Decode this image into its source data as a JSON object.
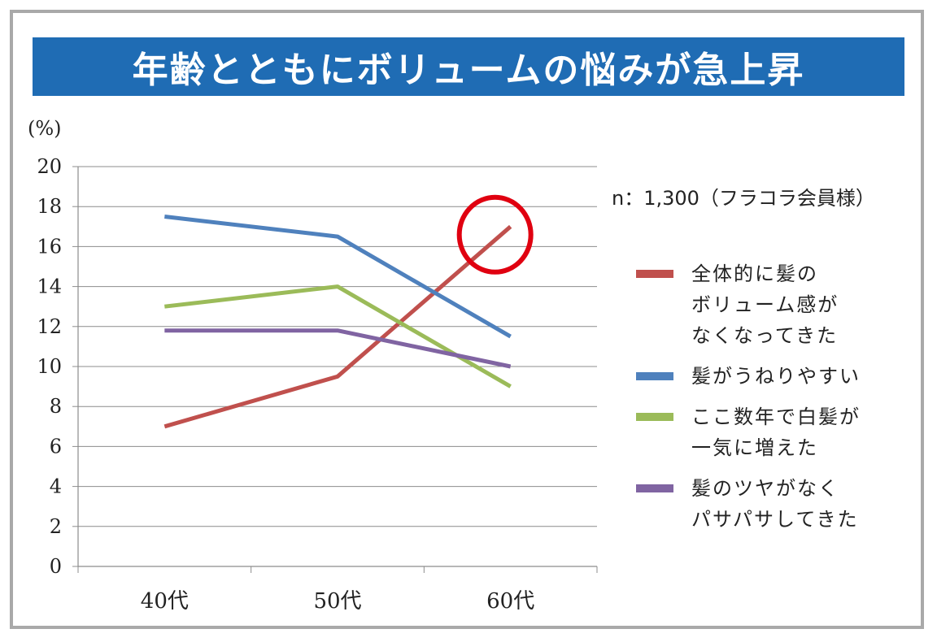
{
  "chart_data": {
    "type": "line",
    "title": "年齢とともにボリュームの悩みが急上昇",
    "ylabel": "(%)",
    "xlabel": "",
    "ylim": [
      0,
      20
    ],
    "yticks": [
      "0",
      "2",
      "4",
      "6",
      "8",
      "10",
      "12",
      "14",
      "16",
      "18",
      "20"
    ],
    "categories": [
      "40代",
      "50代",
      "60代"
    ],
    "note": "n：1,300（フラコラ会員様）",
    "legend_position": "right",
    "grid": true,
    "series": [
      {
        "name": "全体的に髪の\nボリューム感が\nなくなってきた",
        "color": "#c0504d",
        "values": [
          7.0,
          9.5,
          17.0
        ]
      },
      {
        "name": "髪がうねりやすい",
        "color": "#4f81bd",
        "values": [
          17.5,
          16.5,
          11.5
        ]
      },
      {
        "name": "ここ数年で白髪が\n一気に増えた",
        "color": "#9bbb59",
        "values": [
          13.0,
          14.0,
          9.0
        ]
      },
      {
        "name": "髪のツヤがなく\nパサパサしてきた",
        "color": "#8064a2",
        "values": [
          11.8,
          11.8,
          10.0
        ]
      }
    ],
    "annotation": {
      "type": "circle",
      "series_index": 0,
      "category_index": 2,
      "color": "#e00010"
    }
  }
}
